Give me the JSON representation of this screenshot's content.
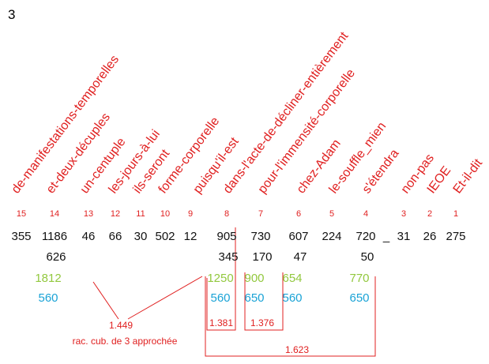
{
  "page_number": "3",
  "columns": [
    {
      "index": "15",
      "word": "de-manifestations-temporelles",
      "value": "355"
    },
    {
      "index": "14",
      "word": "et-deux-décuples",
      "value": "1186",
      "second": "626",
      "green": "1812",
      "blue": "560"
    },
    {
      "index": "13",
      "word": "un-centuple",
      "value": "46"
    },
    {
      "index": "12",
      "word": "les-jours-à-lui",
      "value": "66"
    },
    {
      "index": "11",
      "word": "ils-seront",
      "value": "30"
    },
    {
      "index": "10",
      "word": "forme-corporelle",
      "value": "502"
    },
    {
      "index": "9",
      "word": "puisqu'il-est",
      "value": "12"
    },
    {
      "index": "8",
      "word": "dans-l'acte-de-décliner-entièrement",
      "value": "905",
      "second": "345",
      "green": "1250",
      "blue": "560"
    },
    {
      "index": "7",
      "word": "pour-l'immensité-corporelle",
      "value": "730",
      "second": "170",
      "green": "900",
      "blue": "650"
    },
    {
      "index": "6",
      "word": "chez-Adam",
      "value": "607",
      "second": "47",
      "green": "654",
      "blue": "560"
    },
    {
      "index": "5",
      "word": "le-souffle_mien",
      "value": "224"
    },
    {
      "index": "4",
      "word": "s'étendra",
      "value": "720",
      "second": "50",
      "green": "770",
      "blue": "650"
    },
    {
      "index": "3",
      "word": "non-pas",
      "value": "31"
    },
    {
      "index": "2",
      "word": "IEOE",
      "value": "26"
    },
    {
      "index": "1",
      "word": "Et-il-dit",
      "value": "275"
    }
  ],
  "separator": "_",
  "annotations": {
    "ratio_1": "1.449",
    "ratio_1_note": "rac. cub. de 3 approchée",
    "ratio_2": "1.381",
    "ratio_3": "1.376",
    "ratio_4": "1.623"
  }
}
